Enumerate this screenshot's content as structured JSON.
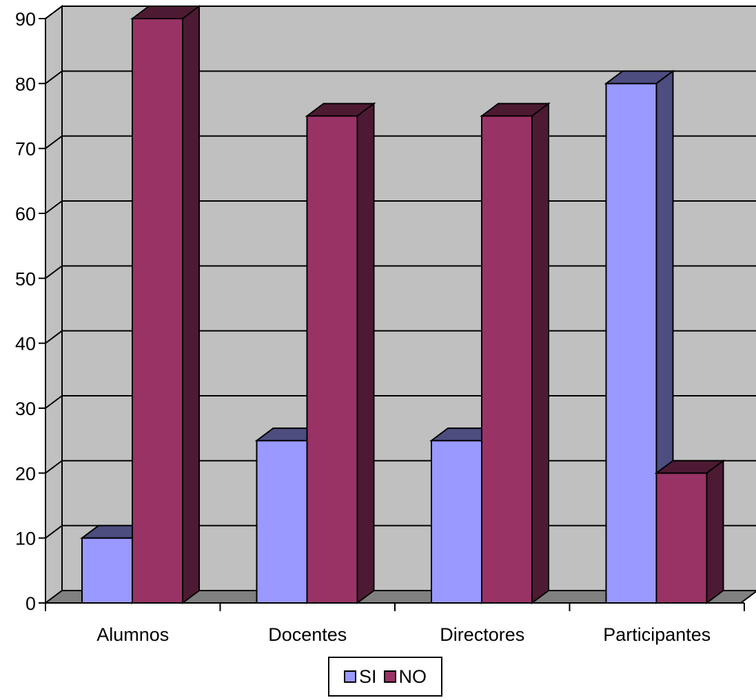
{
  "chart_data": {
    "type": "bar",
    "style": "3d-clustered-column",
    "categories": [
      "Alumnos",
      "Docentes",
      "Directores",
      "Participantes"
    ],
    "series": [
      {
        "name": "SI",
        "values": [
          10,
          25,
          25,
          80
        ],
        "color": "#9999ff",
        "side_color": "#4d4d80"
      },
      {
        "name": "NO",
        "values": [
          90,
          75,
          75,
          20
        ],
        "color": "#993366",
        "side_color": "#4d1a33"
      }
    ],
    "ylim": [
      0,
      90
    ],
    "yticks": [
      0,
      10,
      20,
      30,
      40,
      50,
      60,
      70,
      80,
      90
    ],
    "grid": true,
    "wall_color": "#c0c0c0",
    "floor_color": "#808080",
    "legend_position": "bottom"
  }
}
